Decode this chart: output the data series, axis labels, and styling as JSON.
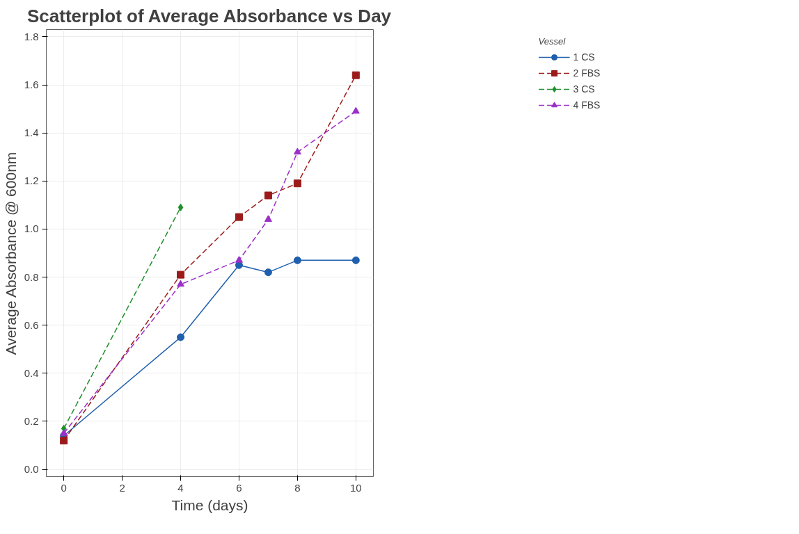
{
  "chart_data": {
    "type": "line",
    "title": "Scatterplot of Average Absorbance vs Day",
    "xlabel": "Time (days)",
    "ylabel": "Average Absorbance @ 600nm",
    "legend_title": "Vessel",
    "legend": "right",
    "grid": true,
    "xlim": [
      -0.6,
      10.6
    ],
    "xticks": [
      0,
      2,
      4,
      6,
      8,
      10
    ],
    "ylim": [
      -0.03,
      1.83
    ],
    "yticks": [
      {
        "value": 0,
        "label": "0.0"
      },
      {
        "value": 0.2,
        "label": "0.2"
      },
      {
        "value": 0.4,
        "label": "0.4"
      },
      {
        "value": 0.6,
        "label": "0.6"
      },
      {
        "value": 0.8,
        "label": "0.8"
      },
      {
        "value": 1.0,
        "label": "1.0"
      },
      {
        "value": 1.2,
        "label": "1.2"
      },
      {
        "value": 1.4,
        "label": "1.4"
      },
      {
        "value": 1.6,
        "label": "1.6"
      },
      {
        "value": 1.8,
        "label": "1.8"
      }
    ],
    "series": [
      {
        "name": "1 CS",
        "color": "#1f5fad",
        "marker": "circle",
        "line_style": "solid",
        "x": [
          0,
          4,
          6,
          7,
          8,
          10
        ],
        "values": [
          0.14,
          0.55,
          0.85,
          0.82,
          0.87,
          0.87
        ]
      },
      {
        "name": "2 FBS",
        "color": "#9b1b1b",
        "marker": "square",
        "line_style": "dashed",
        "x": [
          0,
          4,
          6,
          7,
          8,
          10
        ],
        "values": [
          0.12,
          0.81,
          1.05,
          1.14,
          1.19,
          1.64
        ]
      },
      {
        "name": "3 CS",
        "color": "#1e8f2a",
        "marker": "diamond",
        "line_style": "dashed",
        "x": [
          0,
          4
        ],
        "values": [
          0.17,
          1.09
        ]
      },
      {
        "name": "4 FBS",
        "color": "#9b30c8",
        "marker": "triangle",
        "line_style": "dashed",
        "x": [
          0,
          4,
          6,
          7,
          8,
          10
        ],
        "values": [
          0.15,
          0.77,
          0.87,
          1.04,
          1.32,
          1.49
        ]
      }
    ]
  }
}
